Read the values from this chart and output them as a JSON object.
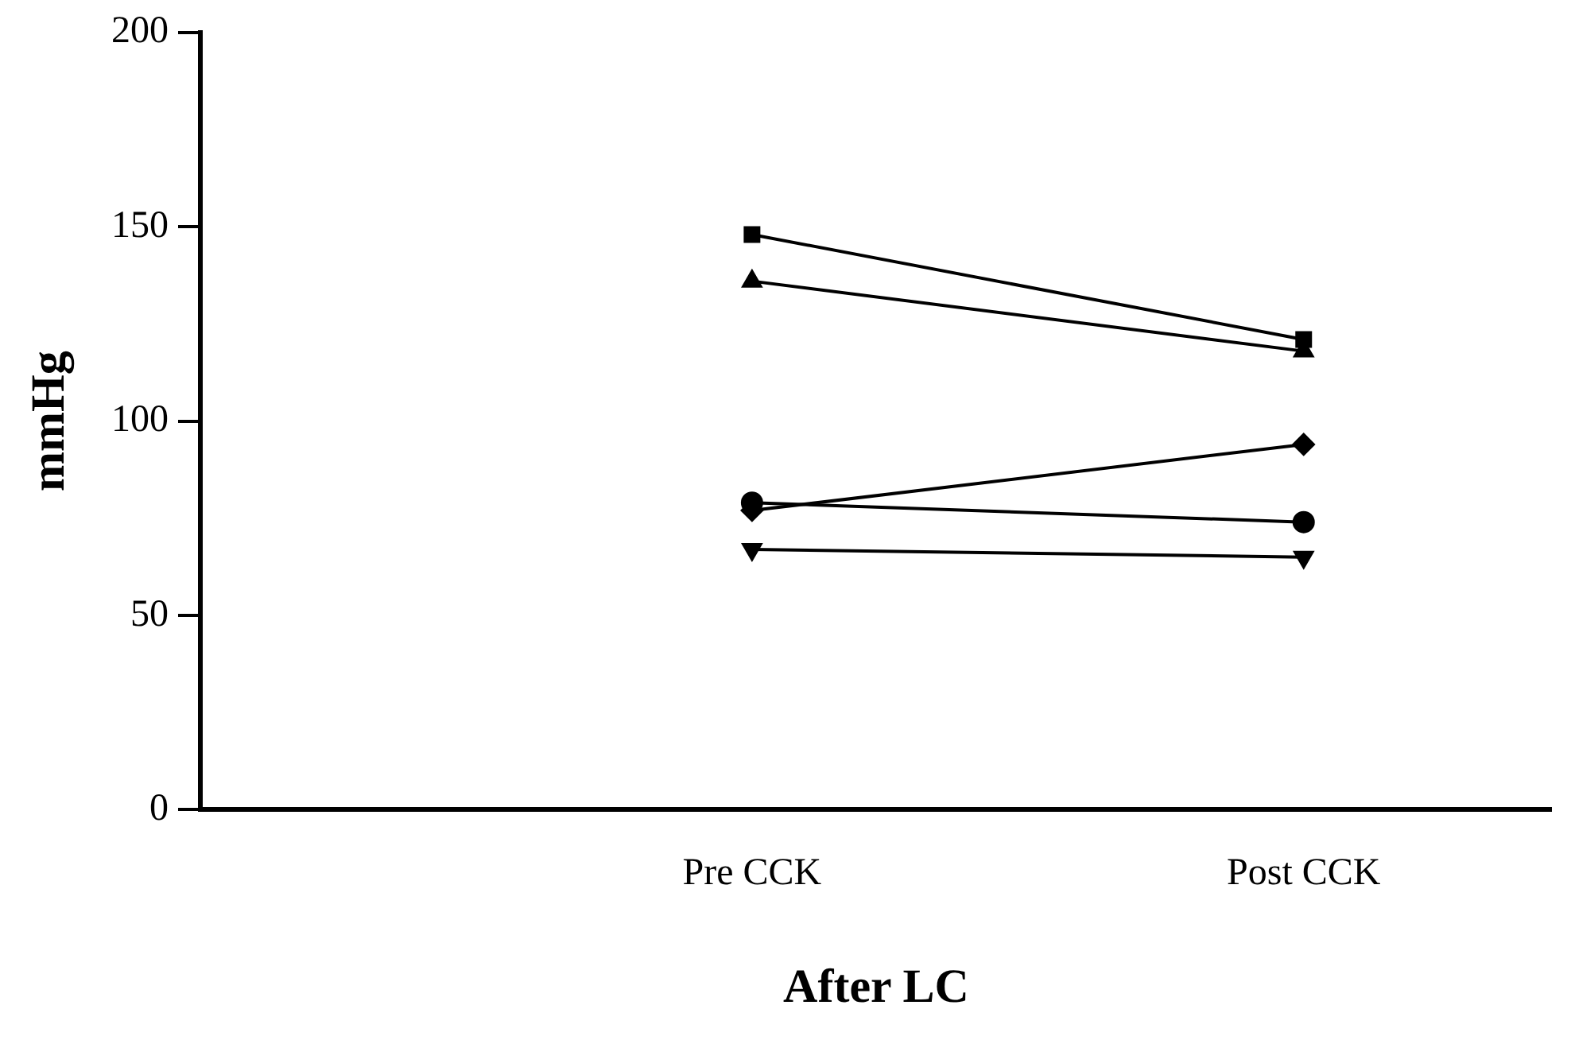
{
  "chart_data": {
    "type": "line",
    "xlabel": "After LC",
    "ylabel": "mmHg",
    "categories": [
      "Pre CCK",
      "Post CCK"
    ],
    "series": [
      {
        "color": "#000000",
        "marker": "square",
        "values": [
          148,
          121
        ]
      },
      {
        "color": "#000000",
        "marker": "triangle",
        "values": [
          136,
          118
        ]
      },
      {
        "color": "#000000",
        "marker": "diamond",
        "values": [
          77,
          94
        ]
      },
      {
        "color": "#000000",
        "marker": "circle",
        "values": [
          79,
          74
        ]
      },
      {
        "color": "#000000",
        "marker": "triangle_down",
        "values": [
          67,
          65
        ]
      }
    ],
    "ylim": [
      0,
      200
    ],
    "yticks": [
      0,
      50,
      100,
      150,
      200
    ],
    "grid": false,
    "legend": false,
    "line_style": "solid"
  }
}
